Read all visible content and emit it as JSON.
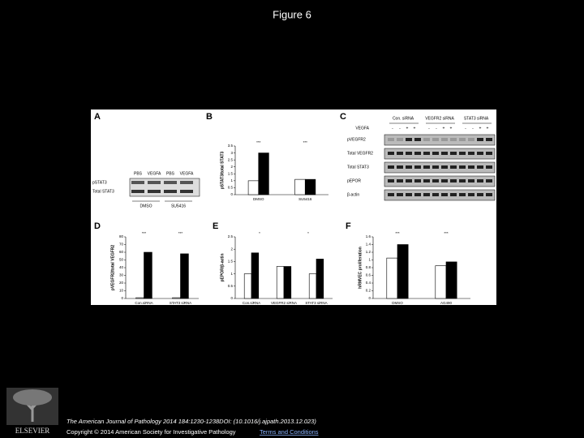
{
  "header": {
    "title": "Figure 6"
  },
  "figure": {
    "a": {
      "letter": "A",
      "lanes": [
        "PBS",
        "VEGFA",
        "PBS",
        "VEGFA"
      ],
      "rows": [
        "pSTAT3",
        "Total STAT3"
      ],
      "groups": [
        "DMSO",
        "SU5416"
      ]
    },
    "b": {
      "letter": "B",
      "type": "bar",
      "ylabel": "pSTAT3/total STAT3",
      "categories": [
        "DMSO",
        "SU5416"
      ],
      "series": [
        {
          "color": "#ffffff",
          "values": [
            1,
            1.1
          ]
        },
        {
          "color": "#000000",
          "values": [
            3,
            1.1
          ]
        }
      ],
      "ylim": [
        0,
        3.5
      ],
      "yticks": [
        0,
        0.5,
        1,
        1.5,
        2,
        2.5,
        3,
        3.5
      ],
      "annotations": [
        "***",
        "***"
      ]
    },
    "c": {
      "letter": "C",
      "groups": [
        "Con. siRNA",
        "VEGFR2 siRNA",
        "STAT3 siRNA"
      ],
      "treatment": "VEGFA",
      "signs": [
        [
          "-",
          "-",
          "+",
          "+"
        ],
        [
          "-",
          "-",
          "+",
          "+"
        ],
        [
          "-",
          "-",
          "+",
          "+"
        ]
      ],
      "rows": [
        "pVEGFR2",
        "Total VEGFR2",
        "Total STAT3",
        "pEPOR",
        "β-actin"
      ]
    },
    "d": {
      "letter": "D",
      "type": "bar",
      "ylabel": "pVEGFR2/total VEGFR2",
      "categories": [
        "Con.siRNA",
        "STAT3 siRNA"
      ],
      "series": [
        {
          "color": "#ffffff",
          "values": [
            1,
            1
          ]
        },
        {
          "color": "#000000",
          "values": [
            60,
            58
          ]
        }
      ],
      "ylim": [
        0,
        80
      ],
      "yticks": [
        0,
        10,
        20,
        30,
        40,
        50,
        60,
        70,
        80
      ],
      "annotations": [
        "***",
        "***"
      ]
    },
    "e": {
      "letter": "E",
      "type": "bar",
      "ylabel": "pEPOR/β-actin",
      "categories": [
        "Con.siRNA",
        "VEGFR2 siRNA",
        "STAT3 siRNA"
      ],
      "series": [
        {
          "color": "#ffffff",
          "values": [
            1,
            1.3,
            1
          ]
        },
        {
          "color": "#000000",
          "values": [
            1.85,
            1.3,
            1.6
          ]
        }
      ],
      "ylim": [
        0,
        2.5
      ],
      "yticks": [
        0,
        0.5,
        1,
        1.5,
        2,
        2.5
      ],
      "annotations": [
        "*",
        "*"
      ]
    },
    "f": {
      "letter": "F",
      "type": "bar",
      "ylabel": "hRMVEC proliferation",
      "categories": [
        "DMSO",
        "AG490"
      ],
      "series": [
        {
          "color": "#ffffff",
          "values": [
            1.05,
            0.85
          ]
        },
        {
          "color": "#000000",
          "values": [
            1.4,
            0.95
          ]
        }
      ],
      "ylim": [
        0,
        1.6
      ],
      "yticks": [
        0,
        0.2,
        0.4,
        0.6,
        0.8,
        1,
        1.2,
        1.4,
        1.6
      ],
      "annotations": [
        "***",
        "***"
      ]
    }
  },
  "logo": {
    "label": "ELSEVIER"
  },
  "footer": {
    "citation": "The American Journal of Pathology 2014 184:1230-1238DOI: (10.1016/j.ajpath.2013.12.023)",
    "copyright": "Copyright © 2014 American Society for Investigative Pathology",
    "terms": "Terms and Conditions"
  }
}
